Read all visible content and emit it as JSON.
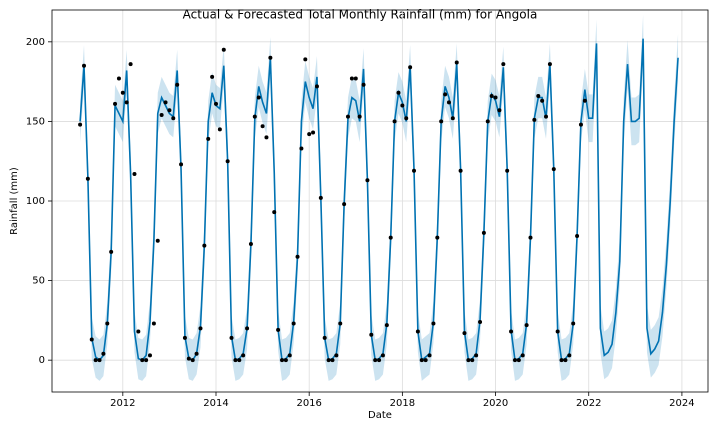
{
  "chart_data": {
    "type": "forecast",
    "title": "Actual & Forecasted Total Monthly Rainfall (mm) for Angola",
    "x_label": "Date",
    "y_label": "Rainfall (mm)",
    "grid": true,
    "xlim": [
      2010.48,
      2024.56
    ],
    "xticks": [
      2012,
      2014,
      2016,
      2018,
      2020,
      2022,
      2024
    ],
    "ylim": [
      -20,
      220
    ],
    "yticks": [
      0,
      50,
      100,
      150,
      200
    ],
    "x": [
      2011.083,
      2011.167,
      2011.25,
      2011.333,
      2011.417,
      2011.5,
      2011.583,
      2011.667,
      2011.75,
      2011.833,
      2011.917,
      2012.0,
      2012.083,
      2012.167,
      2012.25,
      2012.333,
      2012.417,
      2012.5,
      2012.583,
      2012.667,
      2012.75,
      2012.833,
      2012.917,
      2013.0,
      2013.083,
      2013.167,
      2013.25,
      2013.333,
      2013.417,
      2013.5,
      2013.583,
      2013.667,
      2013.75,
      2013.833,
      2013.917,
      2014.0,
      2014.083,
      2014.167,
      2014.25,
      2014.333,
      2014.417,
      2014.5,
      2014.583,
      2014.667,
      2014.75,
      2014.833,
      2014.917,
      2015.0,
      2015.083,
      2015.167,
      2015.25,
      2015.333,
      2015.417,
      2015.5,
      2015.583,
      2015.667,
      2015.75,
      2015.833,
      2015.917,
      2016.0,
      2016.083,
      2016.167,
      2016.25,
      2016.333,
      2016.417,
      2016.5,
      2016.583,
      2016.667,
      2016.75,
      2016.833,
      2016.917,
      2017.0,
      2017.083,
      2017.167,
      2017.25,
      2017.333,
      2017.417,
      2017.5,
      2017.583,
      2017.667,
      2017.75,
      2017.833,
      2017.917,
      2018.0,
      2018.083,
      2018.167,
      2018.25,
      2018.333,
      2018.417,
      2018.5,
      2018.583,
      2018.667,
      2018.75,
      2018.833,
      2018.917,
      2019.0,
      2019.083,
      2019.167,
      2019.25,
      2019.333,
      2019.417,
      2019.5,
      2019.583,
      2019.667,
      2019.75,
      2019.833,
      2019.917,
      2020.0,
      2020.083,
      2020.167,
      2020.25,
      2020.333,
      2020.417,
      2020.5,
      2020.583,
      2020.667,
      2020.75,
      2020.833,
      2020.917,
      2021.0,
      2021.083,
      2021.167,
      2021.25,
      2021.333,
      2021.417,
      2021.5,
      2021.583,
      2021.667,
      2021.75,
      2021.833,
      2021.917,
      2022.0,
      2022.083,
      2022.167,
      2022.25,
      2022.333,
      2022.417,
      2022.5,
      2022.583,
      2022.667,
      2022.75,
      2022.833,
      2022.917,
      2023.0,
      2023.083,
      2023.167,
      2023.25,
      2023.333,
      2023.417,
      2023.5,
      2023.583,
      2023.667,
      2023.75,
      2023.833,
      2023.917
    ],
    "forecast": {
      "color": "#0072b2",
      "values": [
        150,
        185,
        115,
        14,
        2,
        0,
        3,
        23,
        68,
        160,
        155,
        150,
        182,
        117,
        18,
        1,
        0,
        3,
        24,
        75,
        155,
        165,
        160,
        155,
        153,
        182,
        120,
        15,
        1,
        0,
        4,
        21,
        72,
        150,
        168,
        160,
        158,
        185,
        125,
        15,
        0,
        1,
        4,
        20,
        73,
        152,
        172,
        162,
        155,
        190,
        118,
        19,
        0,
        1,
        4,
        24,
        65,
        150,
        175,
        165,
        158,
        178,
        102,
        14,
        0,
        1,
        4,
        23,
        98,
        152,
        165,
        163,
        150,
        183,
        113,
        16,
        0,
        1,
        4,
        23,
        77,
        150,
        168,
        162,
        150,
        185,
        120,
        18,
        0,
        2,
        4,
        24,
        77,
        150,
        172,
        165,
        152,
        186,
        120,
        18,
        0,
        1,
        4,
        25,
        80,
        150,
        167,
        163,
        153,
        184,
        120,
        19,
        0,
        1,
        4,
        23,
        77,
        152,
        165,
        165,
        152,
        186,
        120,
        18,
        0,
        1,
        4,
        23,
        78,
        150,
        170,
        152,
        152,
        199,
        20,
        3,
        5,
        10,
        30,
        62,
        150,
        186,
        150,
        150,
        152,
        202,
        20,
        4,
        7,
        12,
        30,
        60,
        100,
        150,
        190
      ]
    },
    "interval": {
      "color": "#0072b2",
      "lower": [
        137,
        172,
        102,
        1,
        -11,
        -13,
        -10,
        10,
        55,
        147,
        142,
        137,
        169,
        104,
        5,
        -12,
        -13,
        -10,
        11,
        62,
        142,
        152,
        147,
        142,
        140,
        169,
        107,
        2,
        -12,
        -13,
        -9,
        8,
        59,
        137,
        155,
        147,
        145,
        172,
        112,
        2,
        -13,
        -12,
        -9,
        7,
        60,
        139,
        159,
        149,
        142,
        177,
        105,
        6,
        -13,
        -12,
        -9,
        11,
        52,
        137,
        162,
        152,
        145,
        165,
        89,
        1,
        -13,
        -12,
        -9,
        10,
        85,
        139,
        152,
        150,
        137,
        170,
        100,
        3,
        -13,
        -12,
        -9,
        10,
        64,
        137,
        155,
        149,
        137,
        172,
        107,
        5,
        -13,
        -11,
        -9,
        11,
        64,
        137,
        159,
        152,
        139,
        173,
        107,
        5,
        -13,
        -12,
        -9,
        12,
        67,
        137,
        154,
        150,
        140,
        171,
        107,
        6,
        -13,
        -12,
        -9,
        10,
        64,
        139,
        152,
        152,
        139,
        173,
        107,
        5,
        -13,
        -12,
        -9,
        10,
        65,
        137,
        157,
        137,
        137,
        184,
        5,
        -12,
        -10,
        -5,
        15,
        47,
        135,
        171,
        135,
        135,
        137,
        187,
        5,
        -11,
        -8,
        -3,
        15,
        45,
        85,
        135,
        175
      ],
      "upper": [
        163,
        198,
        128,
        27,
        15,
        13,
        16,
        36,
        81,
        173,
        168,
        163,
        195,
        130,
        31,
        14,
        13,
        16,
        37,
        88,
        168,
        178,
        173,
        168,
        166,
        195,
        133,
        28,
        14,
        13,
        17,
        34,
        85,
        163,
        181,
        173,
        171,
        198,
        138,
        28,
        13,
        14,
        17,
        33,
        86,
        165,
        185,
        175,
        168,
        203,
        131,
        32,
        13,
        14,
        17,
        37,
        78,
        163,
        188,
        178,
        171,
        191,
        115,
        27,
        13,
        14,
        17,
        36,
        111,
        165,
        178,
        176,
        163,
        196,
        126,
        29,
        13,
        14,
        17,
        36,
        90,
        163,
        181,
        175,
        163,
        198,
        133,
        31,
        13,
        15,
        17,
        37,
        90,
        163,
        185,
        178,
        165,
        199,
        133,
        31,
        13,
        14,
        17,
        38,
        93,
        163,
        180,
        176,
        166,
        197,
        133,
        32,
        13,
        14,
        17,
        36,
        90,
        165,
        178,
        178,
        165,
        199,
        133,
        31,
        13,
        14,
        17,
        36,
        91,
        163,
        183,
        167,
        167,
        214,
        35,
        18,
        20,
        25,
        45,
        77,
        165,
        201,
        165,
        165,
        167,
        217,
        35,
        19,
        22,
        27,
        45,
        75,
        115,
        165,
        205
      ]
    },
    "actual": {
      "color": "#000000",
      "values": [
        148,
        185,
        114,
        13,
        0,
        0,
        4,
        23,
        68,
        161,
        177,
        168,
        162,
        186,
        117,
        18,
        0,
        0,
        3,
        23,
        75,
        154,
        162,
        157,
        152,
        173,
        123,
        14,
        1,
        0,
        4,
        20,
        72,
        139,
        178,
        161,
        145,
        195,
        125,
        14,
        0,
        0,
        3,
        20,
        73,
        153,
        165,
        147,
        140,
        190,
        93,
        19,
        0,
        0,
        3,
        23,
        65,
        133,
        189,
        142,
        143,
        172,
        102,
        14,
        0,
        0,
        3,
        23,
        98,
        153,
        177,
        177,
        153,
        173,
        113,
        16,
        0,
        0,
        3,
        22,
        77,
        150,
        168,
        160,
        152,
        184,
        119,
        18,
        0,
        0,
        3,
        23,
        77,
        150,
        167,
        162,
        152,
        187,
        119,
        17,
        0,
        0,
        3,
        24,
        80,
        150,
        166,
        165,
        157,
        186,
        119,
        18,
        0,
        0,
        3,
        22,
        77,
        151,
        166,
        163,
        153,
        186,
        120,
        18,
        0,
        0,
        3,
        23,
        78,
        148,
        163,
        null,
        null,
        null,
        null,
        null,
        null,
        null,
        null,
        null,
        null,
        null,
        null,
        null,
        null,
        null,
        null,
        null,
        null,
        null,
        null,
        null,
        null,
        null,
        null
      ]
    }
  }
}
